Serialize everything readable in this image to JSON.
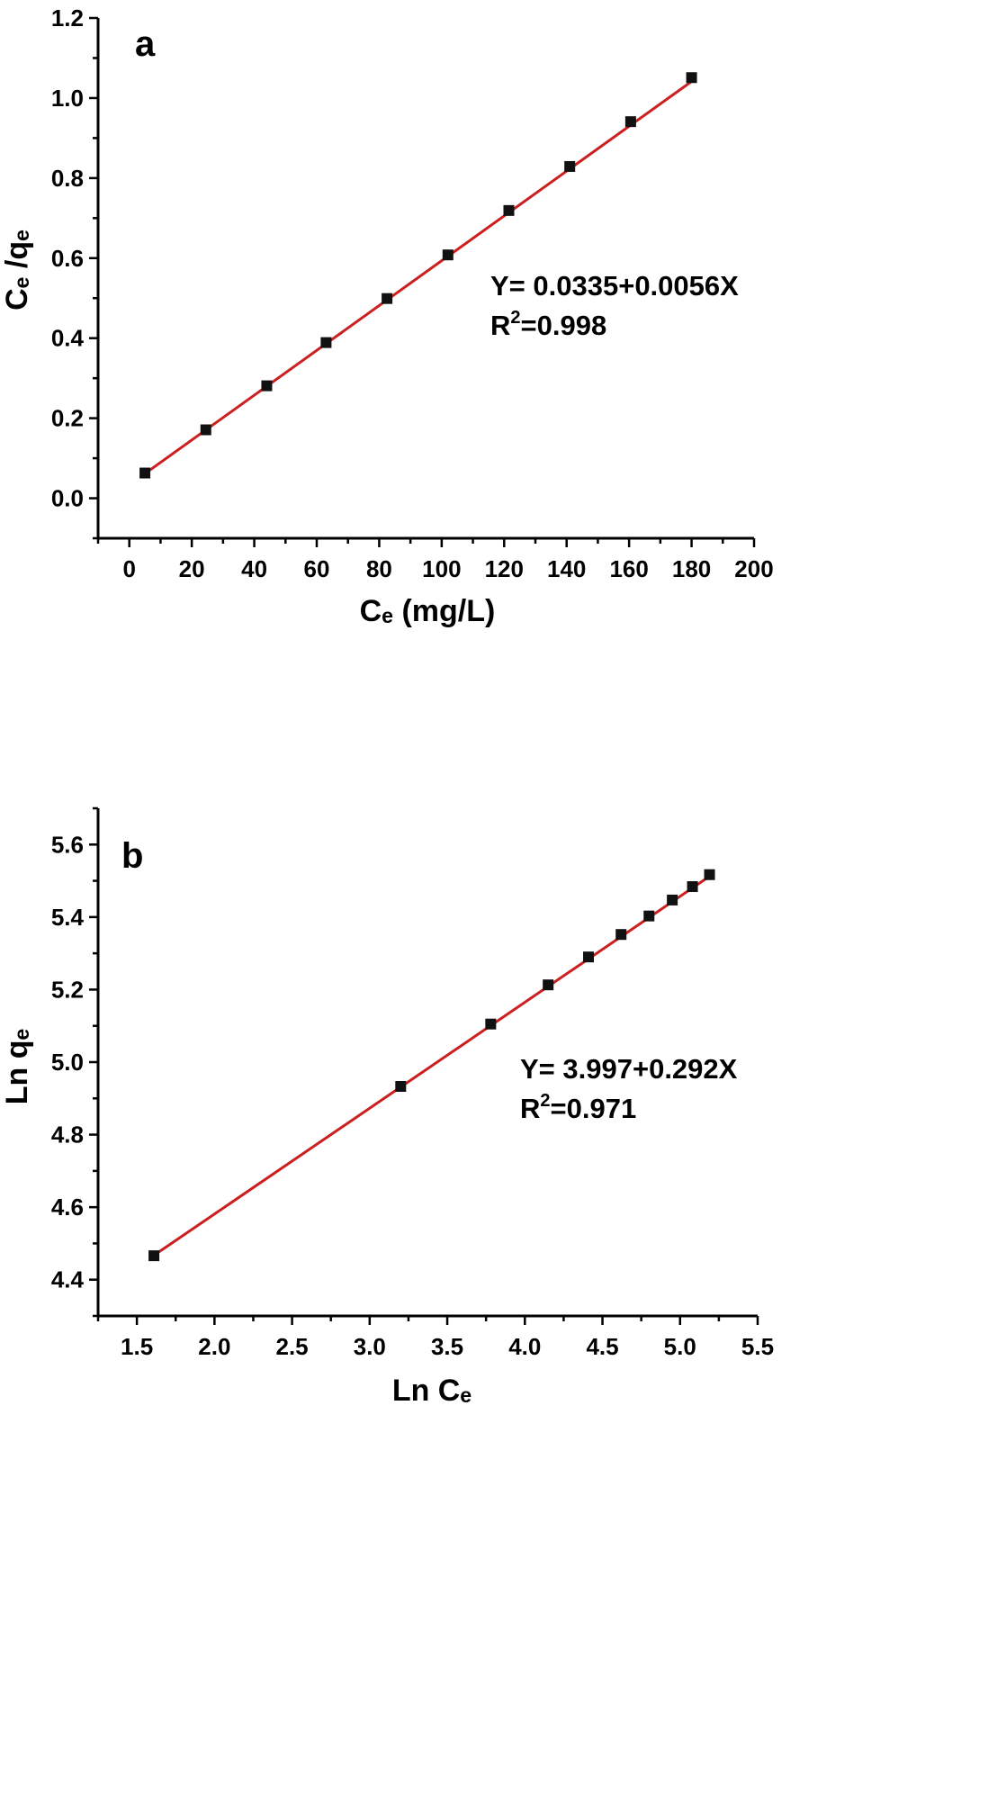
{
  "chart_data": [
    {
      "type": "scatter",
      "panel_label": "a",
      "xlabel": "Cₑ (mg/L)",
      "ylabel": "Cₑ /qₑ",
      "xlim": [
        -10,
        200
      ],
      "ylim": [
        -0.1,
        1.2
      ],
      "x_ticks": [
        0,
        20,
        40,
        60,
        80,
        100,
        120,
        140,
        160,
        180,
        200
      ],
      "x_tick_labels": [
        "0",
        "20",
        "40",
        "60",
        "80",
        "100",
        "120",
        "140",
        "160",
        "180",
        "200"
      ],
      "y_ticks": [
        0.0,
        0.2,
        0.4,
        0.6,
        0.8,
        1.0,
        1.2
      ],
      "y_tick_labels": [
        "0.0",
        "0.2",
        "0.4",
        "0.6",
        "0.8",
        "1.0",
        "1.2"
      ],
      "x": [
        5,
        24.5,
        44,
        63,
        82.5,
        102,
        121.5,
        141,
        160.5,
        180
      ],
      "y": [
        0.063,
        0.171,
        0.281,
        0.389,
        0.499,
        0.608,
        0.719,
        0.829,
        0.941,
        1.051
      ],
      "fit": {
        "intercept": 0.0335,
        "slope": 0.0056,
        "x_range": [
          5,
          180
        ]
      },
      "equation": "Y= 0.0335+0.0056X",
      "r2_prefix": "R",
      "r2_sup": "2",
      "r2_value": "=0.998",
      "colors": {
        "points": "#111111",
        "fit": "#cc1f1f",
        "axes": "#000000"
      }
    },
    {
      "type": "scatter",
      "panel_label": "b",
      "xlabel": "Ln Cₑ",
      "ylabel": "Ln qₑ",
      "xlim": [
        1.25,
        5.5
      ],
      "ylim": [
        4.3,
        5.7
      ],
      "x_ticks": [
        1.5,
        2.0,
        2.5,
        3.0,
        3.5,
        4.0,
        4.5,
        5.0,
        5.5
      ],
      "x_tick_labels": [
        "1.5",
        "2.0",
        "2.5",
        "3.0",
        "3.5",
        "4.0",
        "4.5",
        "5.0",
        "5.5"
      ],
      "y_ticks": [
        4.4,
        4.6,
        4.8,
        5.0,
        5.2,
        5.4,
        5.6
      ],
      "y_tick_labels": [
        "4.4",
        "4.6",
        "4.8",
        "5.0",
        "5.2",
        "5.4",
        "5.6"
      ],
      "x": [
        1.61,
        3.2,
        3.78,
        4.15,
        4.41,
        4.62,
        4.8,
        4.95,
        5.08,
        5.19
      ],
      "y": [
        4.466,
        4.933,
        5.105,
        5.213,
        5.29,
        5.352,
        5.403,
        5.447,
        5.484,
        5.517
      ],
      "fit": {
        "intercept": 3.997,
        "slope": 0.292,
        "x_range": [
          1.61,
          5.19
        ]
      },
      "equation": "Y= 3.997+0.292X",
      "r2_prefix": "R",
      "r2_sup": "2",
      "r2_value": "=0.971",
      "colors": {
        "points": "#111111",
        "fit": "#cc1f1f",
        "axes": "#000000"
      }
    }
  ]
}
